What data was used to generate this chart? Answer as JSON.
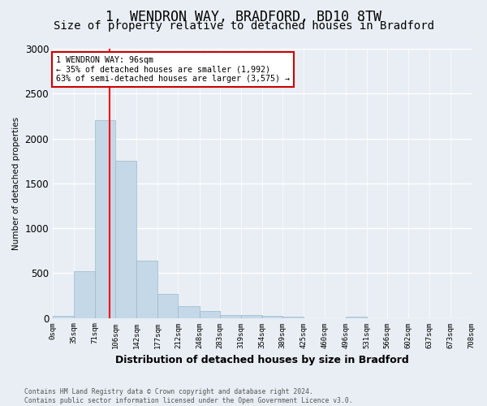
{
  "title": "1, WENDRON WAY, BRADFORD, BD10 8TW",
  "subtitle": "Size of property relative to detached houses in Bradford",
  "bar_values": [
    20,
    520,
    2200,
    1750,
    640,
    265,
    130,
    75,
    30,
    30,
    20,
    15,
    0,
    0,
    15,
    0,
    0,
    0,
    0,
    0
  ],
  "bin_edges": [
    0,
    35,
    71,
    106,
    142,
    177,
    212,
    248,
    283,
    319,
    354,
    389,
    425,
    460,
    496,
    531,
    566,
    602,
    637,
    673,
    708
  ],
  "bin_labels": [
    "0sqm",
    "35sqm",
    "71sqm",
    "106sqm",
    "142sqm",
    "177sqm",
    "212sqm",
    "248sqm",
    "283sqm",
    "319sqm",
    "354sqm",
    "389sqm",
    "425sqm",
    "460sqm",
    "496sqm",
    "531sqm",
    "566sqm",
    "602sqm",
    "637sqm",
    "673sqm",
    "708sqm"
  ],
  "bar_color": "#c5d8e8",
  "bar_edge_color": "#9ab8cc",
  "ylabel": "Number of detached properties",
  "xlabel": "Distribution of detached houses by size in Bradford",
  "ylim": [
    0,
    3000
  ],
  "vline_x": 96,
  "vline_color": "red",
  "annotation_title": "1 WENDRON WAY: 96sqm",
  "annotation_line1": "← 35% of detached houses are smaller (1,992)",
  "annotation_line2": "63% of semi-detached houses are larger (3,575) →",
  "annotation_box_color": "#ffffff",
  "annotation_box_edge": "#cc0000",
  "footer_line1": "Contains HM Land Registry data © Crown copyright and database right 2024.",
  "footer_line2": "Contains public sector information licensed under the Open Government Licence v3.0.",
  "background_color": "#e8eef4",
  "grid_color": "#ffffff",
  "title_fontsize": 12,
  "subtitle_fontsize": 10
}
